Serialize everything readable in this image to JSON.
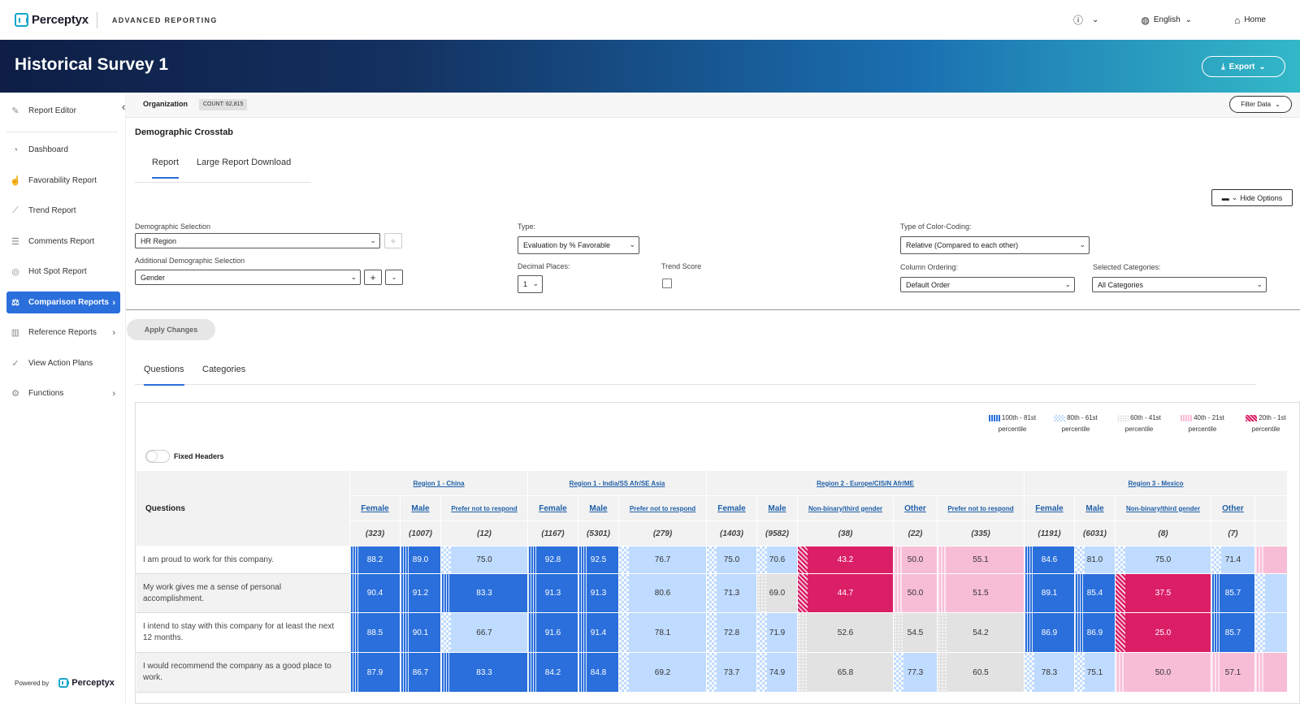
{
  "app": {
    "brand": "Perceptyx",
    "name": "ADVANCED REPORTING",
    "help_label": "?",
    "language": "English",
    "home": "Home"
  },
  "header": {
    "title": "Historical Survey 1",
    "export_label": "Export"
  },
  "sidebar": {
    "items": [
      {
        "label": "Report Editor"
      },
      {
        "label": "Dashboard"
      },
      {
        "label": "Favorability Report"
      },
      {
        "label": "Trend Report"
      },
      {
        "label": "Comments Report"
      },
      {
        "label": "Hot Spot Report"
      },
      {
        "label": "Comparison Reports"
      },
      {
        "label": "Reference Reports"
      },
      {
        "label": "View Action Plans"
      },
      {
        "label": "Functions"
      }
    ],
    "powered_by": "Powered by",
    "powered_brand": "Perceptyx"
  },
  "orgbar": {
    "label": "Organization",
    "count": "COUNT: 62,815",
    "filter_label": "Filter Data"
  },
  "section_title": "Demographic Crosstab",
  "tabs_top": [
    "Report",
    "Large Report Download"
  ],
  "hide_options_label": "Hide Options",
  "options": {
    "demo_label": "Demographic Selection",
    "demo_value": "HR Region",
    "add_demo_label": "Additional Demographic Selection",
    "add_demo_value": "Gender",
    "type_label": "Type:",
    "type_value": "Evaluation by % Favorable",
    "decimal_label": "Decimal Places:",
    "decimal_value": "1",
    "trend_label": "Trend Score",
    "color_label": "Type of Color-Coding:",
    "color_value": "Relative (Compared to each other)",
    "order_label": "Column Ordering:",
    "order_value": "Default Order",
    "cat_label": "Selected Categories:",
    "cat_value": "All Categories",
    "plus": "+",
    "minus": "-"
  },
  "apply_label": "Apply Changes",
  "tabs_bottom": [
    "Questions",
    "Categories"
  ],
  "legend": [
    {
      "range": "100th - 81st",
      "unit": "percentile",
      "color": "#2a6fdb"
    },
    {
      "range": "80th - 61st",
      "unit": "percentile",
      "color": "#bfdbff"
    },
    {
      "range": "60th - 41st",
      "unit": "percentile",
      "color": "#e2e2e2"
    },
    {
      "range": "40th - 21st",
      "unit": "percentile",
      "color": "#f8bdd6"
    },
    {
      "range": "20th - 1st",
      "unit": "percentile",
      "color": "#db1f67"
    }
  ],
  "fixed_headers_label": "Fixed Headers",
  "table": {
    "questions_header": "Questions",
    "regions": [
      {
        "name": "Region 1 - China",
        "span": 3
      },
      {
        "name": "Region 1 - India/SS Afr/SE Asia",
        "span": 3
      },
      {
        "name": "Region 2 - Europe/CIS/N Afr/ME",
        "span": 5
      },
      {
        "name": "Region 3 - Mexico",
        "span": 5
      }
    ],
    "columns": [
      {
        "label": "Female",
        "n": "(323)",
        "small": false
      },
      {
        "label": "Male",
        "n": "(1007)",
        "small": false
      },
      {
        "label": "Prefer not to respond",
        "n": "(12)",
        "small": true
      },
      {
        "label": "Female",
        "n": "(1167)",
        "small": false
      },
      {
        "label": "Male",
        "n": "(5301)",
        "small": false
      },
      {
        "label": "Prefer not to respond",
        "n": "(279)",
        "small": true
      },
      {
        "label": "Female",
        "n": "(1403)",
        "small": false
      },
      {
        "label": "Male",
        "n": "(9582)",
        "small": false
      },
      {
        "label": "Non-binary/third gender",
        "n": "(38)",
        "small": true
      },
      {
        "label": "Other",
        "n": "(22)",
        "small": false
      },
      {
        "label": "Prefer not to respond",
        "n": "(335)",
        "small": true
      },
      {
        "label": "Female",
        "n": "(1191)",
        "small": false
      },
      {
        "label": "Male",
        "n": "(6031)",
        "small": false
      },
      {
        "label": "Non-binary/third gender",
        "n": "(8)",
        "small": true
      },
      {
        "label": "Other",
        "n": "(7)",
        "small": false
      },
      {
        "label": "",
        "n": "",
        "small": false
      }
    ],
    "rows": [
      {
        "question": "I am proud to work for this company.",
        "cells": [
          [
            "88.2",
            1
          ],
          [
            "89.0",
            1
          ],
          [
            "75.0",
            2
          ],
          [
            "92.8",
            1
          ],
          [
            "92.5",
            1
          ],
          [
            "76.7",
            2
          ],
          [
            "75.0",
            2
          ],
          [
            "70.6",
            2
          ],
          [
            "43.2",
            5
          ],
          [
            "50.0",
            4
          ],
          [
            "55.1",
            4
          ],
          [
            "84.6",
            1
          ],
          [
            "81.0",
            2
          ],
          [
            "75.0",
            2
          ],
          [
            "71.4",
            2
          ],
          [
            "",
            4
          ]
        ]
      },
      {
        "question": "My work gives me a sense of personal accomplishment.",
        "cells": [
          [
            "90.4",
            1
          ],
          [
            "91.2",
            1
          ],
          [
            "83.3",
            1
          ],
          [
            "91.3",
            1
          ],
          [
            "91.3",
            1
          ],
          [
            "80.6",
            2
          ],
          [
            "71.3",
            2
          ],
          [
            "69.0",
            3
          ],
          [
            "44.7",
            5
          ],
          [
            "50.0",
            4
          ],
          [
            "51.5",
            4
          ],
          [
            "89.1",
            1
          ],
          [
            "85.4",
            1
          ],
          [
            "37.5",
            5
          ],
          [
            "85.7",
            1
          ],
          [
            "",
            2
          ]
        ]
      },
      {
        "question": "I intend to stay with this company for at least the next 12 months.",
        "cells": [
          [
            "88.5",
            1
          ],
          [
            "90.1",
            1
          ],
          [
            "66.7",
            2
          ],
          [
            "91.6",
            1
          ],
          [
            "91.4",
            1
          ],
          [
            "78.1",
            2
          ],
          [
            "72.8",
            2
          ],
          [
            "71.9",
            2
          ],
          [
            "52.6",
            3
          ],
          [
            "54.5",
            3
          ],
          [
            "54.2",
            3
          ],
          [
            "86.9",
            1
          ],
          [
            "86.9",
            1
          ],
          [
            "25.0",
            5
          ],
          [
            "85.7",
            1
          ],
          [
            "",
            2
          ]
        ]
      },
      {
        "question": "I would recommend the company as a good place to work.",
        "cells": [
          [
            "87.9",
            1
          ],
          [
            "86.7",
            1
          ],
          [
            "83.3",
            1
          ],
          [
            "84.2",
            1
          ],
          [
            "84.8",
            1
          ],
          [
            "69.2",
            2
          ],
          [
            "73.7",
            2
          ],
          [
            "74.9",
            2
          ],
          [
            "65.8",
            3
          ],
          [
            "77.3",
            2
          ],
          [
            "60.5",
            3
          ],
          [
            "78.3",
            2
          ],
          [
            "75.1",
            2
          ],
          [
            "50.0",
            4
          ],
          [
            "57.1",
            4
          ],
          [
            "",
            4
          ]
        ]
      }
    ]
  }
}
